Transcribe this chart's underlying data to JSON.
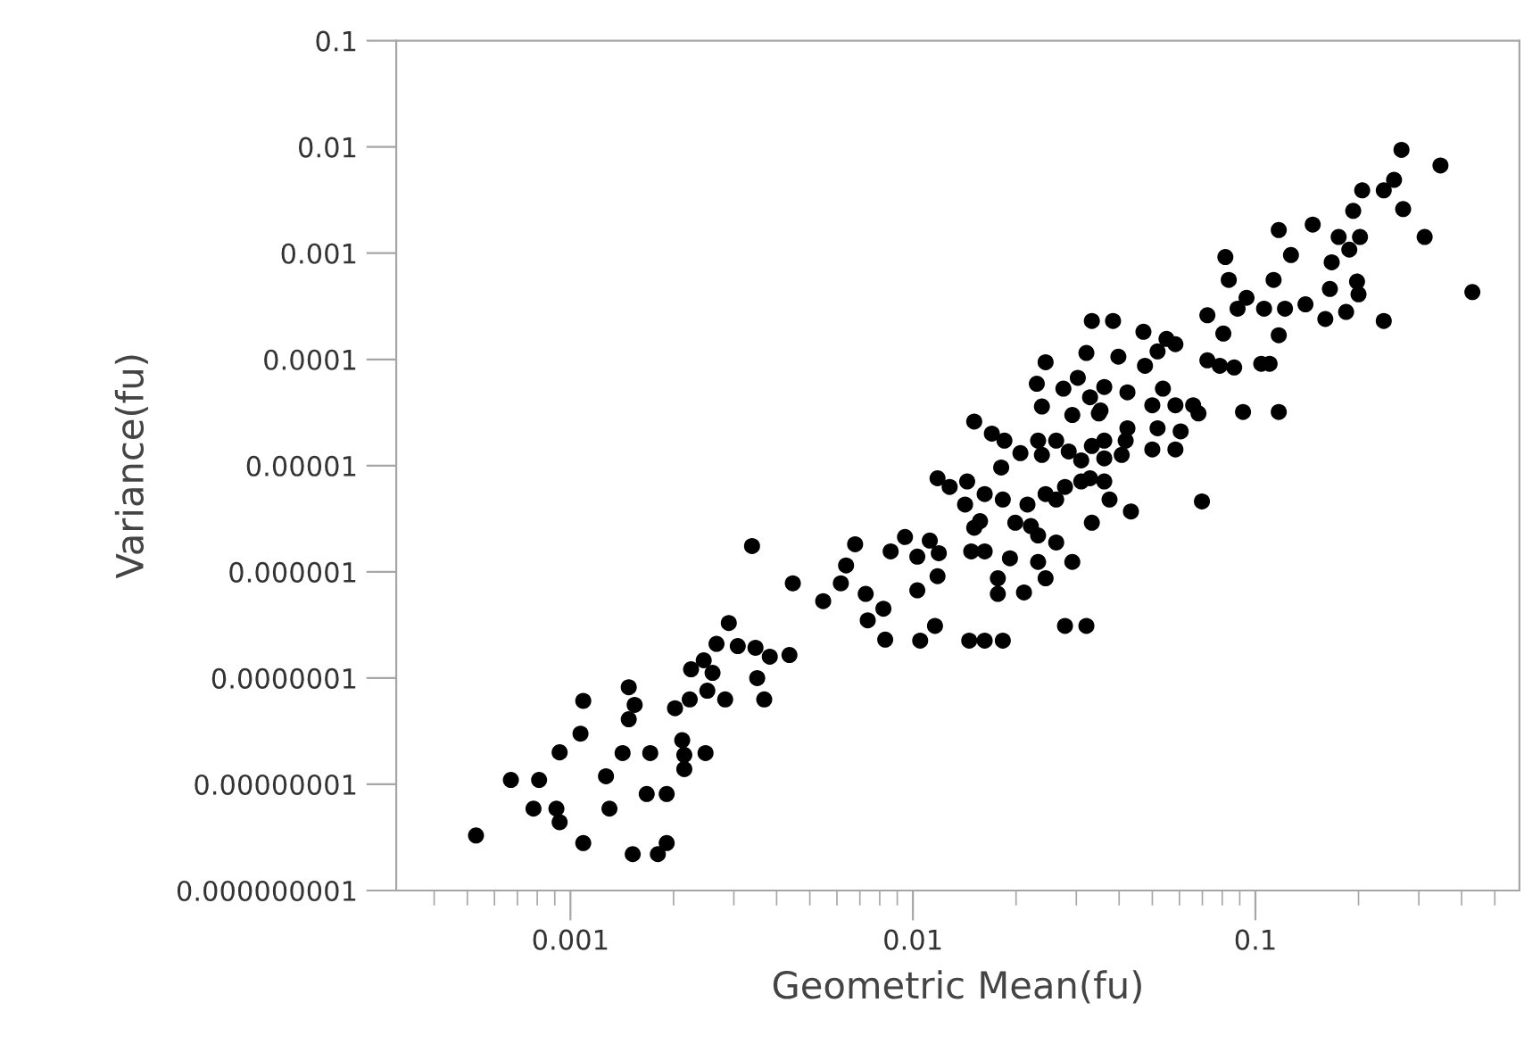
{
  "chart_data": {
    "type": "scatter",
    "xlabel": "Geometric Mean(fu)",
    "ylabel": "Variance(fu)",
    "log": "xy",
    "grid": false,
    "marker": "circle",
    "xlim": [
      0.00031,
      0.59
    ],
    "ylim": [
      1e-09,
      0.1
    ],
    "xticks": [
      {
        "value": 0.001,
        "label": "0.001"
      },
      {
        "value": 0.01,
        "label": "0.01"
      },
      {
        "value": 0.1,
        "label": "0.1"
      }
    ],
    "yticks": [
      {
        "value": 1e-09,
        "label": "0.000000001"
      },
      {
        "value": 1e-08,
        "label": "0.00000001"
      },
      {
        "value": 1e-07,
        "label": "0.0000001"
      },
      {
        "value": 1e-06,
        "label": "0.000001"
      },
      {
        "value": 1e-05,
        "label": "0.00001"
      },
      {
        "value": 0.0001,
        "label": "0.0001"
      },
      {
        "value": 0.001,
        "label": "0.001"
      },
      {
        "value": 0.01,
        "label": "0.01"
      },
      {
        "value": 0.1,
        "label": "0.1"
      }
    ],
    "series": [
      {
        "color": "#000000",
        "x": [
          0.00053,
          0.00067,
          0.00081,
          0.00078,
          0.00091,
          0.00093,
          0.00109,
          0.00093,
          0.00107,
          0.00109,
          0.00127,
          0.0013,
          0.00142,
          0.00148,
          0.00154,
          0.00148,
          0.00171,
          0.00167,
          0.00191,
          0.00152,
          0.0018,
          0.00191,
          0.00212,
          0.00215,
          0.00215,
          0.00248,
          0.00202,
          0.00223,
          0.00225,
          0.00245,
          0.00251,
          0.0026,
          0.00283,
          0.00267,
          0.0029,
          0.00308,
          0.00347,
          0.00382,
          0.00351,
          0.00368,
          0.00339,
          0.00436,
          0.00446,
          0.00547,
          0.00616,
          0.00638,
          0.00678,
          0.00728,
          0.0082,
          0.00738,
          0.0083,
          0.00861,
          0.00948,
          0.0103,
          0.0112,
          0.0119,
          0.0118,
          0.0103,
          0.0116,
          0.0105,
          0.0146,
          0.0162,
          0.0183,
          0.0148,
          0.0162,
          0.0177,
          0.0177,
          0.0192,
          0.0211,
          0.0232,
          0.0244,
          0.0262,
          0.0292,
          0.0278,
          0.0321,
          0.0118,
          0.0128,
          0.0144,
          0.0142,
          0.0162,
          0.0157,
          0.0151,
          0.0183,
          0.0199,
          0.0216,
          0.0221,
          0.0232,
          0.0244,
          0.0262,
          0.0278,
          0.031,
          0.0333,
          0.0362,
          0.0375,
          0.0433,
          0.0151,
          0.017,
          0.0185,
          0.0206,
          0.0232,
          0.0181,
          0.0238,
          0.0262,
          0.0285,
          0.031,
          0.0333,
          0.0362,
          0.0407,
          0.0329,
          0.0238,
          0.023,
          0.0244,
          0.0275,
          0.0303,
          0.0321,
          0.0292,
          0.0329,
          0.0362,
          0.0353,
          0.0398,
          0.0423,
          0.0333,
          0.0384,
          0.0418,
          0.267,
          0.347,
          0.205,
          0.237,
          0.254,
          0.27,
          0.193,
          0.312,
          0.43,
          0.117,
          0.147,
          0.175,
          0.202,
          0.167,
          0.188,
          0.165,
          0.198,
          0.2,
          0.184,
          0.16,
          0.237,
          0.0817,
          0.127,
          0.0836,
          0.113,
          0.0942,
          0.106,
          0.122,
          0.14,
          0.0887,
          0.0724,
          0.0806,
          0.117,
          0.0471,
          0.055,
          0.0584,
          0.0518,
          0.0476,
          0.0724,
          0.0787,
          0.0867,
          0.104,
          0.11,
          0.092,
          0.117,
          0.0537,
          0.05,
          0.0584,
          0.0658,
          0.0682,
          0.0349,
          0.0423,
          0.0518,
          0.0605,
          0.0584,
          0.05,
          0.0362,
          0.0698
        ],
        "values": [
          3.3e-09,
          1.1e-08,
          1.1e-08,
          5.9e-09,
          5.9e-09,
          4.4e-09,
          2.8e-09,
          2e-08,
          3e-08,
          6.1e-08,
          1.19e-08,
          5.9e-09,
          1.97e-08,
          8.2e-08,
          5.6e-08,
          4.1e-08,
          1.97e-08,
          8.1e-09,
          8.1e-09,
          2.2e-09,
          2.2e-09,
          2.8e-09,
          2.6e-08,
          1.89e-08,
          1.39e-08,
          1.97e-08,
          5.2e-08,
          6.3e-08,
          1.21e-07,
          1.47e-07,
          7.6e-08,
          1.12e-07,
          6.3e-08,
          2.1e-07,
          3.3e-07,
          2e-07,
          1.93e-07,
          1.59e-07,
          1e-07,
          6.3e-08,
          1.75e-06,
          1.65e-07,
          7.8e-07,
          5.3e-07,
          7.8e-07,
          1.15e-06,
          1.82e-06,
          6.2e-07,
          4.5e-07,
          3.5e-07,
          2.3e-07,
          1.56e-06,
          2.13e-06,
          1.39e-06,
          1.97e-06,
          1.5e-06,
          9.1e-07,
          6.7e-07,
          3.1e-07,
          2.25e-07,
          2.25e-07,
          2.25e-07,
          2.25e-07,
          1.56e-06,
          1.56e-06,
          8.7e-07,
          6.2e-07,
          1.34e-06,
          6.4e-07,
          1.24e-06,
          8.7e-07,
          1.89e-06,
          1.24e-06,
          3.1e-07,
          3.1e-07,
          7.6e-06,
          6.3e-06,
          7.1e-06,
          4.3e-06,
          5.4e-06,
          3e-06,
          2.6e-06,
          4.8e-06,
          2.9e-06,
          4.3e-06,
          2.7e-06,
          2.2e-06,
          5.4e-06,
          4.8e-06,
          6.3e-06,
          7.1e-06,
          2.9e-06,
          7.1e-06,
          4.8e-06,
          3.7e-06,
          2.6e-05,
          2e-05,
          1.72e-05,
          1.31e-05,
          1.72e-05,
          9.6e-06,
          1.26e-05,
          1.72e-05,
          1.36e-05,
          1.12e-05,
          1.53e-05,
          1.17e-05,
          1.26e-05,
          7.6e-06,
          3.6e-05,
          5.9e-05,
          9.4e-05,
          5.3e-05,
          6.7e-05,
          0.000115,
          3e-05,
          4.4e-05,
          5.5e-05,
          3.3e-05,
          0.000106,
          4.9e-05,
          0.00023,
          0.00023,
          1.72e-05,
          0.0094,
          0.0067,
          0.0039,
          0.0039,
          0.0049,
          0.0026,
          0.0025,
          0.00142,
          0.00043,
          0.00165,
          0.00186,
          0.00142,
          0.00142,
          0.00082,
          0.00108,
          0.00046,
          0.00054,
          0.00041,
          0.00028,
          0.00024,
          0.00023,
          0.00092,
          0.00096,
          0.00056,
          0.00056,
          0.00038,
          0.0003,
          0.0003,
          0.00033,
          0.0003,
          0.00026,
          0.000175,
          0.000169,
          0.000182,
          0.000156,
          0.000139,
          0.000119,
          8.7e-05,
          9.8e-05,
          8.7e-05,
          8.4e-05,
          9.1e-05,
          9.1e-05,
          3.2e-05,
          3.2e-05,
          5.3e-05,
          3.7e-05,
          3.7e-05,
          3.7e-05,
          3.1e-05,
          3.1e-05,
          2.25e-05,
          2.25e-05,
          2.1e-05,
          1.42e-05,
          1.42e-05,
          1.72e-05,
          4.6e-06
        ]
      }
    ]
  }
}
